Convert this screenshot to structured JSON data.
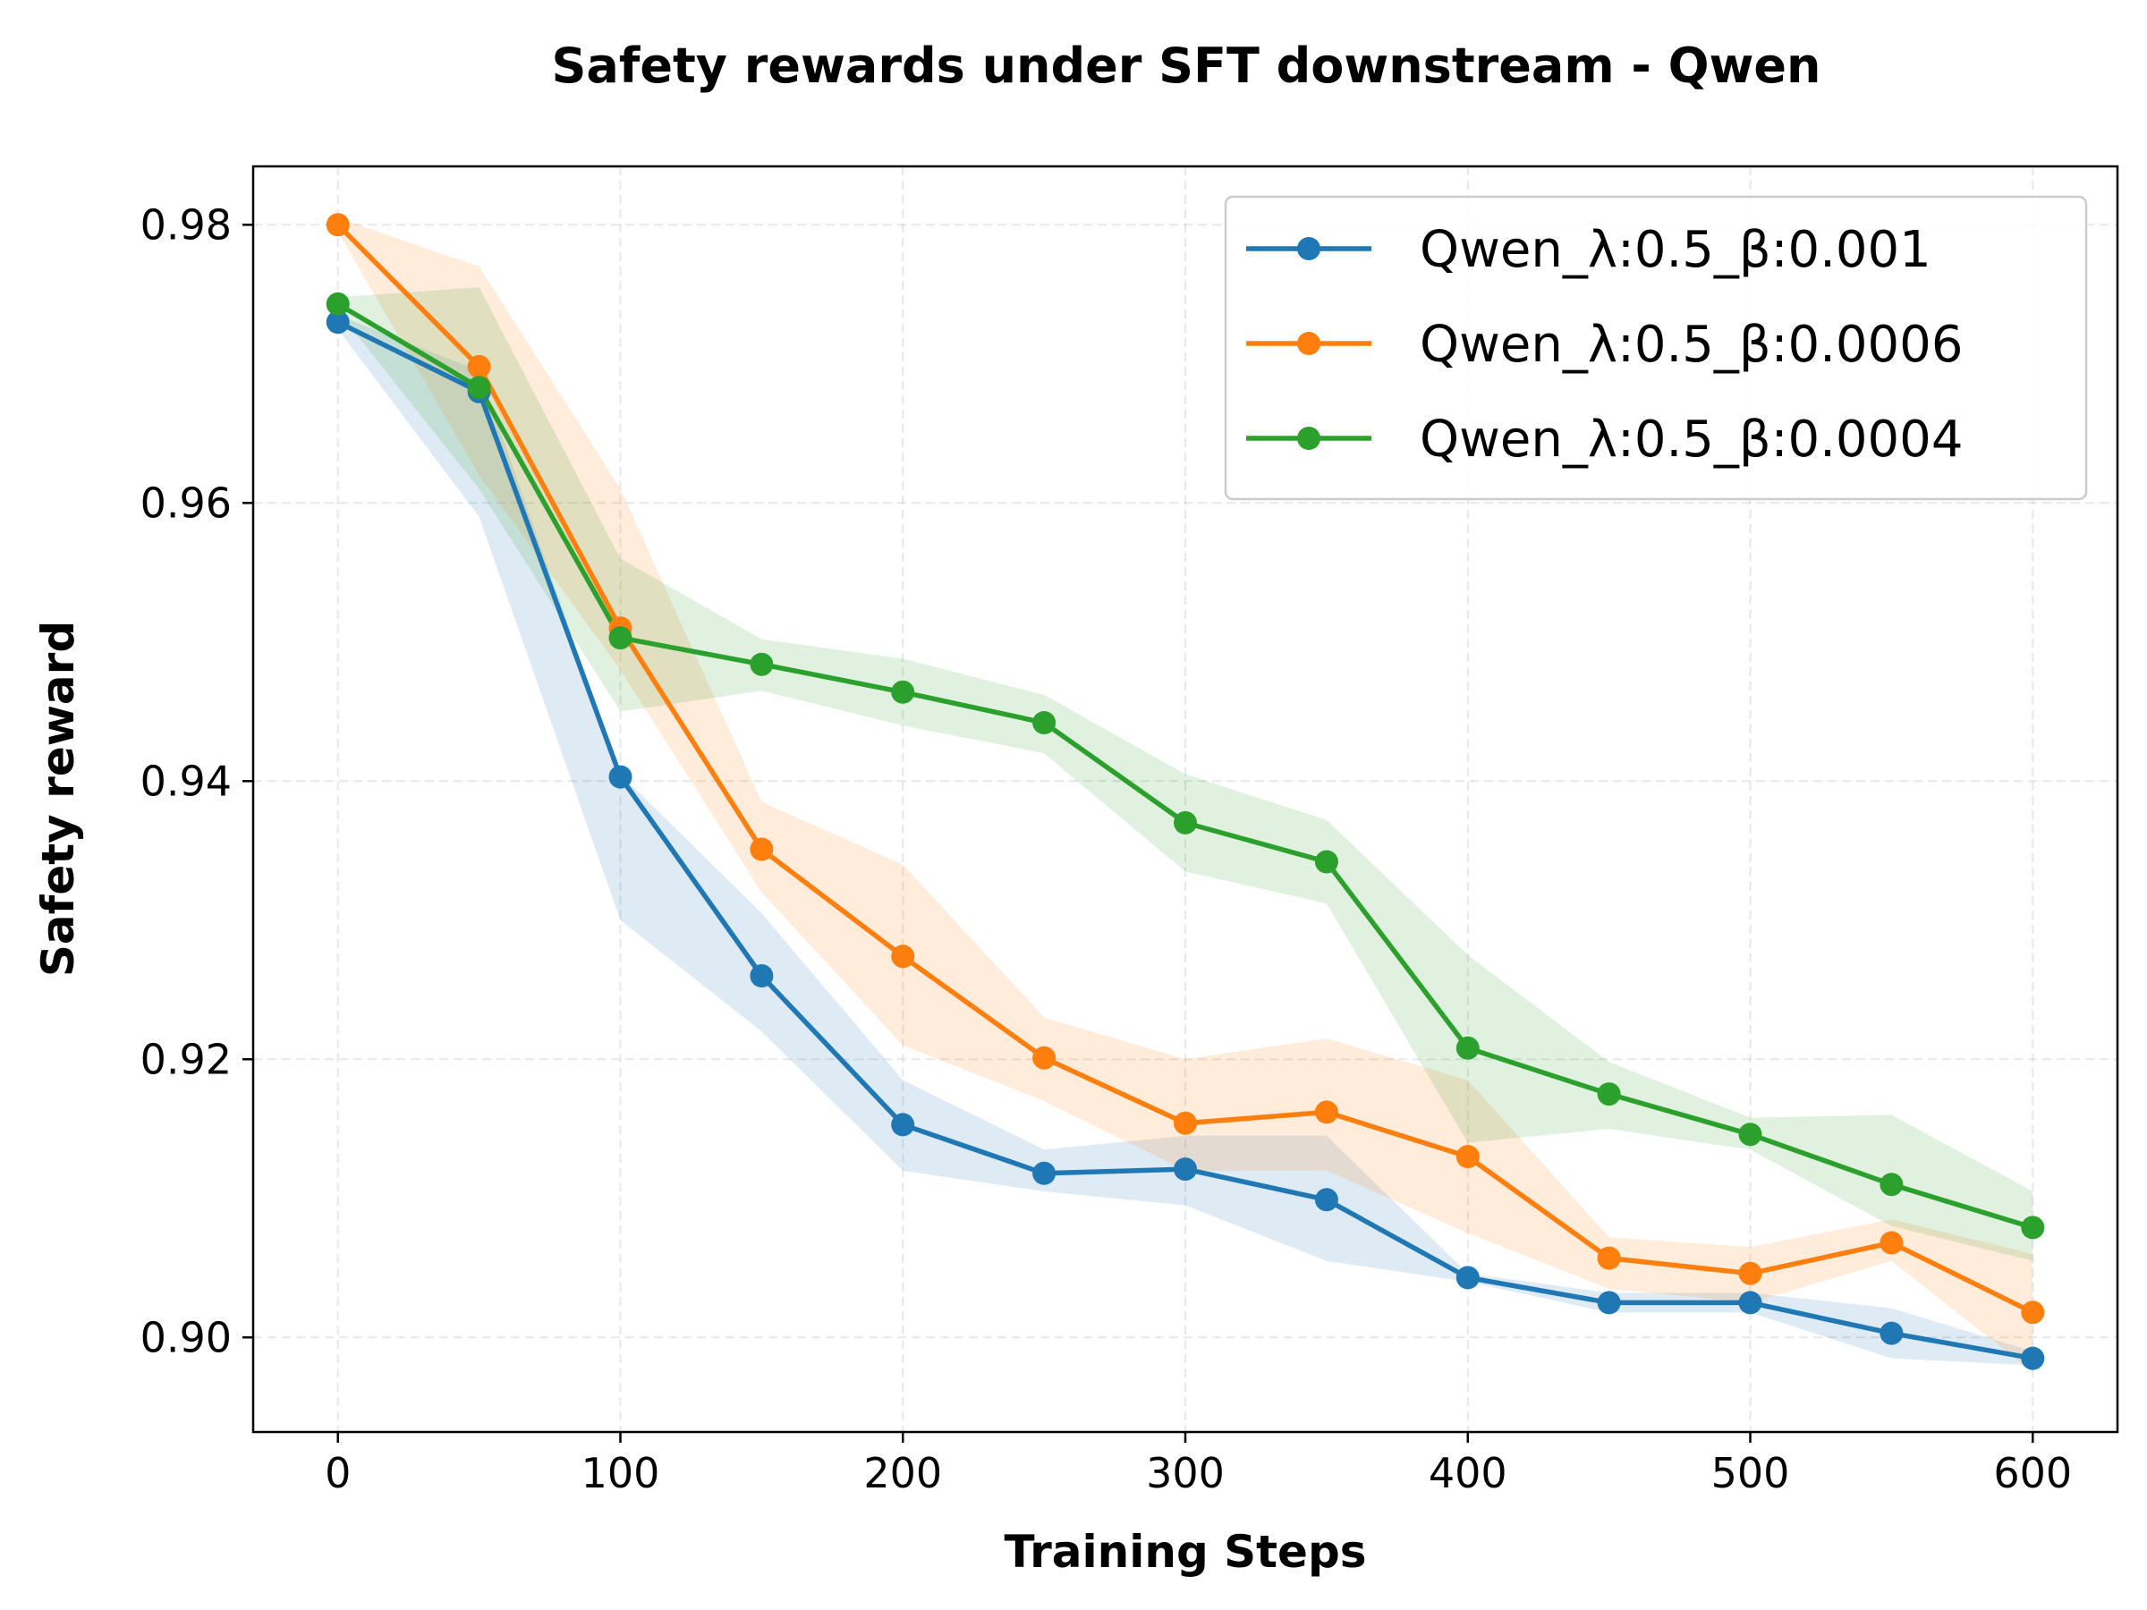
{
  "chart_data": {
    "type": "line",
    "title": "Safety rewards under SFT downstream - Qwen",
    "xlabel": "Training Steps",
    "ylabel": "Safety reward",
    "x": [
      0,
      50,
      100,
      150,
      200,
      250,
      300,
      350,
      400,
      450,
      500,
      550,
      600
    ],
    "xlim": [
      -30,
      630
    ],
    "ylim": [
      0.8932,
      0.9842
    ],
    "xticks": [
      0,
      100,
      200,
      300,
      400,
      500,
      600
    ],
    "xtick_labels": [
      "0",
      "100",
      "200",
      "300",
      "400",
      "500",
      "600"
    ],
    "yticks": [
      0.9,
      0.92,
      0.94,
      0.96,
      0.98
    ],
    "ytick_labels": [
      "0.90",
      "0.92",
      "0.94",
      "0.96",
      "0.98"
    ],
    "grid": true,
    "legend_position": "top-right",
    "series": [
      {
        "name": "Qwen_λ:0.5_β:0.001",
        "color": "#1f77b4",
        "values": [
          0.973,
          0.968,
          0.9403,
          0.926,
          0.9153,
          0.9118,
          0.9121,
          0.9099,
          0.9043,
          0.9025,
          0.9025,
          0.9003,
          0.8985
        ],
        "band_low": [
          0.9725,
          0.959,
          0.93,
          0.922,
          0.912,
          0.9105,
          0.9095,
          0.9055,
          0.904,
          0.9018,
          0.9018,
          0.8985,
          0.898
        ],
        "band_high": [
          0.9735,
          0.9695,
          0.9405,
          0.9305,
          0.9185,
          0.9135,
          0.9145,
          0.9145,
          0.9046,
          0.9032,
          0.9032,
          0.9021,
          0.899
        ]
      },
      {
        "name": "Qwen_λ:0.5_β:0.0006",
        "color": "#ff7f0e",
        "values": [
          0.98,
          0.9698,
          0.951,
          0.9351,
          0.9274,
          0.9201,
          0.9154,
          0.9162,
          0.913,
          0.9057,
          0.9046,
          0.9068,
          0.9018
        ],
        "band_low": [
          0.9795,
          0.962,
          0.948,
          0.932,
          0.921,
          0.917,
          0.912,
          0.912,
          0.9075,
          0.9035,
          0.9025,
          0.9055,
          0.8975
        ],
        "band_high": [
          0.9805,
          0.977,
          0.961,
          0.9385,
          0.934,
          0.923,
          0.92,
          0.9215,
          0.9185,
          0.9072,
          0.9065,
          0.9085,
          0.906
        ]
      },
      {
        "name": "Qwen_λ:0.5_β:0.0004",
        "color": "#2ca02c",
        "values": [
          0.9743,
          0.9683,
          0.9503,
          0.9484,
          0.9464,
          0.9442,
          0.937,
          0.9342,
          0.9208,
          0.9175,
          0.9146,
          0.911,
          0.9079
        ],
        "band_low": [
          0.9738,
          0.961,
          0.945,
          0.9465,
          0.944,
          0.942,
          0.9335,
          0.9312,
          0.914,
          0.915,
          0.9135,
          0.908,
          0.9055
        ],
        "band_high": [
          0.9748,
          0.9755,
          0.956,
          0.9502,
          0.9488,
          0.9462,
          0.9405,
          0.9372,
          0.9275,
          0.9198,
          0.9158,
          0.916,
          0.9105
        ]
      }
    ]
  }
}
